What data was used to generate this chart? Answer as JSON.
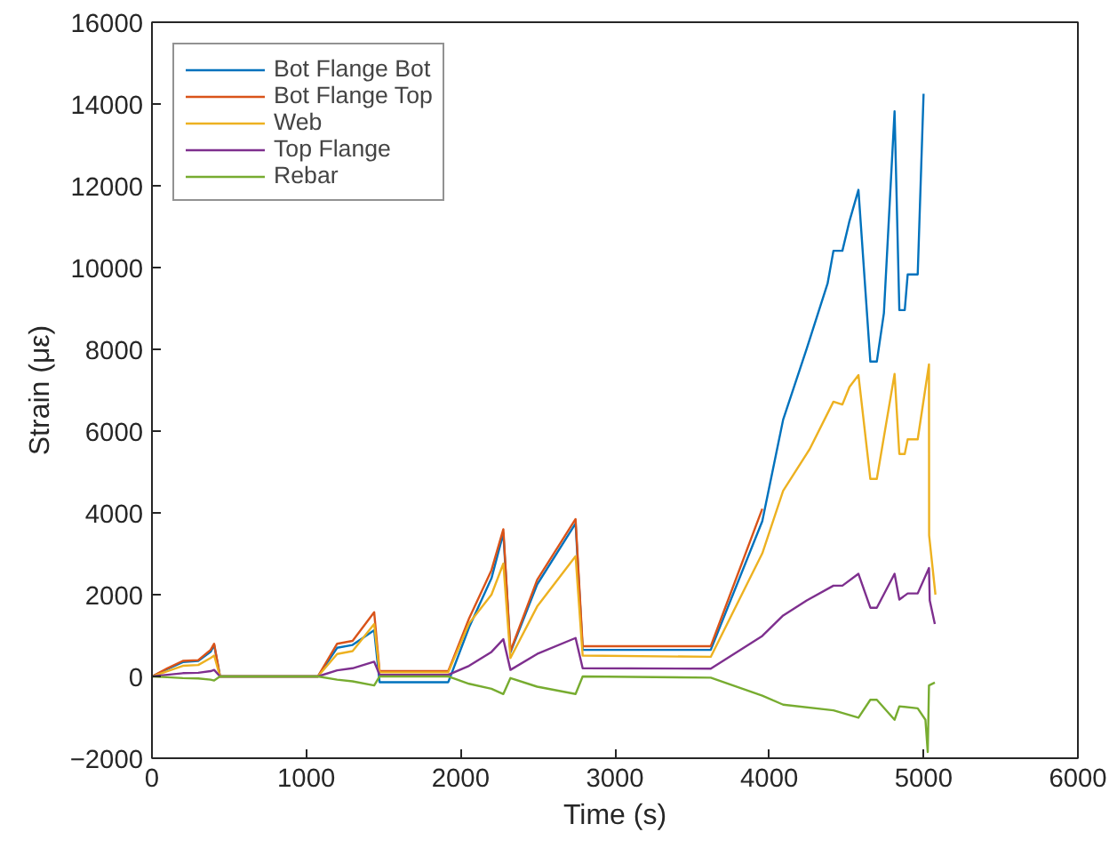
{
  "chart_data": {
    "type": "line",
    "xlabel": "Time (s)",
    "ylabel": "Strain (με)",
    "xlim": [
      0,
      6000
    ],
    "ylim": [
      -2000,
      16000
    ],
    "xticks": [
      0,
      1000,
      2000,
      3000,
      4000,
      5000,
      6000
    ],
    "yticks": [
      -2000,
      0,
      2000,
      4000,
      6000,
      8000,
      10000,
      12000,
      14000,
      16000
    ],
    "grid": false,
    "legend": "top left",
    "marker": "none",
    "line_style": "solid",
    "series": [
      {
        "name": "Bot Flange Bot",
        "color": "#0072bd",
        "x": [
          0,
          100,
          200,
          300,
          380,
          403,
          441,
          1075,
          1200,
          1300,
          1440,
          1475,
          1920,
          2055,
          2200,
          2277,
          2323,
          2496,
          2745,
          2791,
          3621,
          3955,
          4090,
          4243,
          4378,
          4416,
          4474,
          4520,
          4578,
          4655,
          4697,
          4743,
          4812,
          4843,
          4878,
          4897,
          4962,
          5000
        ],
        "values": [
          0,
          180,
          350,
          380,
          600,
          770,
          0,
          0,
          700,
          770,
          1130,
          -140,
          -140,
          1200,
          2400,
          3500,
          590,
          2250,
          3740,
          650,
          650,
          3800,
          6280,
          8020,
          9610,
          10410,
          10410,
          11140,
          11900,
          7700,
          7700,
          8890,
          13820,
          8960,
          8960,
          9830,
          9830,
          14250
        ]
      },
      {
        "name": "Bot Flange Top",
        "color": "#d95319",
        "x": [
          0,
          100,
          200,
          300,
          380,
          403,
          441,
          1075,
          1200,
          1300,
          1440,
          1475,
          1920,
          2055,
          2200,
          2277,
          2323,
          2496,
          2745,
          2791,
          3621,
          3955
        ],
        "values": [
          0,
          200,
          380,
          400,
          650,
          800,
          0,
          0,
          800,
          870,
          1570,
          130,
          130,
          1420,
          2600,
          3600,
          620,
          2360,
          3850,
          740,
          740,
          4100
        ]
      },
      {
        "name": "Web",
        "color": "#edb120",
        "x": [
          0,
          100,
          200,
          300,
          380,
          403,
          441,
          1075,
          1200,
          1300,
          1440,
          1475,
          1920,
          2055,
          2200,
          2277,
          2323,
          2496,
          2745,
          2791,
          3621,
          3955,
          4090,
          4262,
          4416,
          4474,
          4520,
          4578,
          4655,
          4697,
          4812,
          4843,
          4878,
          4897,
          4962,
          5035,
          5036,
          5077
        ],
        "values": [
          0,
          130,
          260,
          280,
          450,
          510,
          0,
          0,
          550,
          620,
          1280,
          100,
          100,
          1300,
          2000,
          2760,
          450,
          1710,
          2940,
          510,
          480,
          3010,
          4540,
          5560,
          6720,
          6650,
          7080,
          7370,
          4830,
          4830,
          7400,
          5440,
          5440,
          5800,
          5800,
          7630,
          3450,
          2000
        ]
      },
      {
        "name": "Top Flange",
        "color": "#7e2f8e",
        "x": [
          0,
          100,
          200,
          300,
          380,
          403,
          441,
          1075,
          1200,
          1300,
          1440,
          1475,
          1920,
          2055,
          2200,
          2277,
          2323,
          2496,
          2745,
          2791,
          3621,
          3955,
          4090,
          4243,
          4416,
          4474,
          4578,
          4655,
          4697,
          4812,
          4843,
          4897,
          4962,
          5035,
          5040,
          5073
        ],
        "values": [
          0,
          40,
          80,
          90,
          130,
          160,
          0,
          0,
          150,
          200,
          360,
          40,
          40,
          260,
          600,
          910,
          160,
          550,
          940,
          200,
          190,
          990,
          1490,
          1860,
          2220,
          2220,
          2510,
          1680,
          1680,
          2510,
          1880,
          2030,
          2030,
          2650,
          1860,
          1280
        ]
      },
      {
        "name": "Rebar",
        "color": "#77ac30",
        "x": [
          0,
          100,
          200,
          300,
          380,
          403,
          441,
          1075,
          1200,
          1300,
          1440,
          1475,
          1920,
          2055,
          2200,
          2277,
          2323,
          2496,
          2745,
          2791,
          3621,
          3955,
          4090,
          4416,
          4578,
          4655,
          4697,
          4812,
          4843,
          4962,
          5012,
          5027,
          5035,
          5073
        ],
        "values": [
          0,
          -20,
          -40,
          -50,
          -80,
          -100,
          0,
          0,
          -80,
          -120,
          -220,
          0,
          0,
          -180,
          -300,
          -430,
          -40,
          -250,
          -430,
          0,
          -30,
          -470,
          -690,
          -830,
          -1010,
          -570,
          -570,
          -1060,
          -730,
          -780,
          -1060,
          -1850,
          -220,
          -150
        ]
      }
    ]
  }
}
